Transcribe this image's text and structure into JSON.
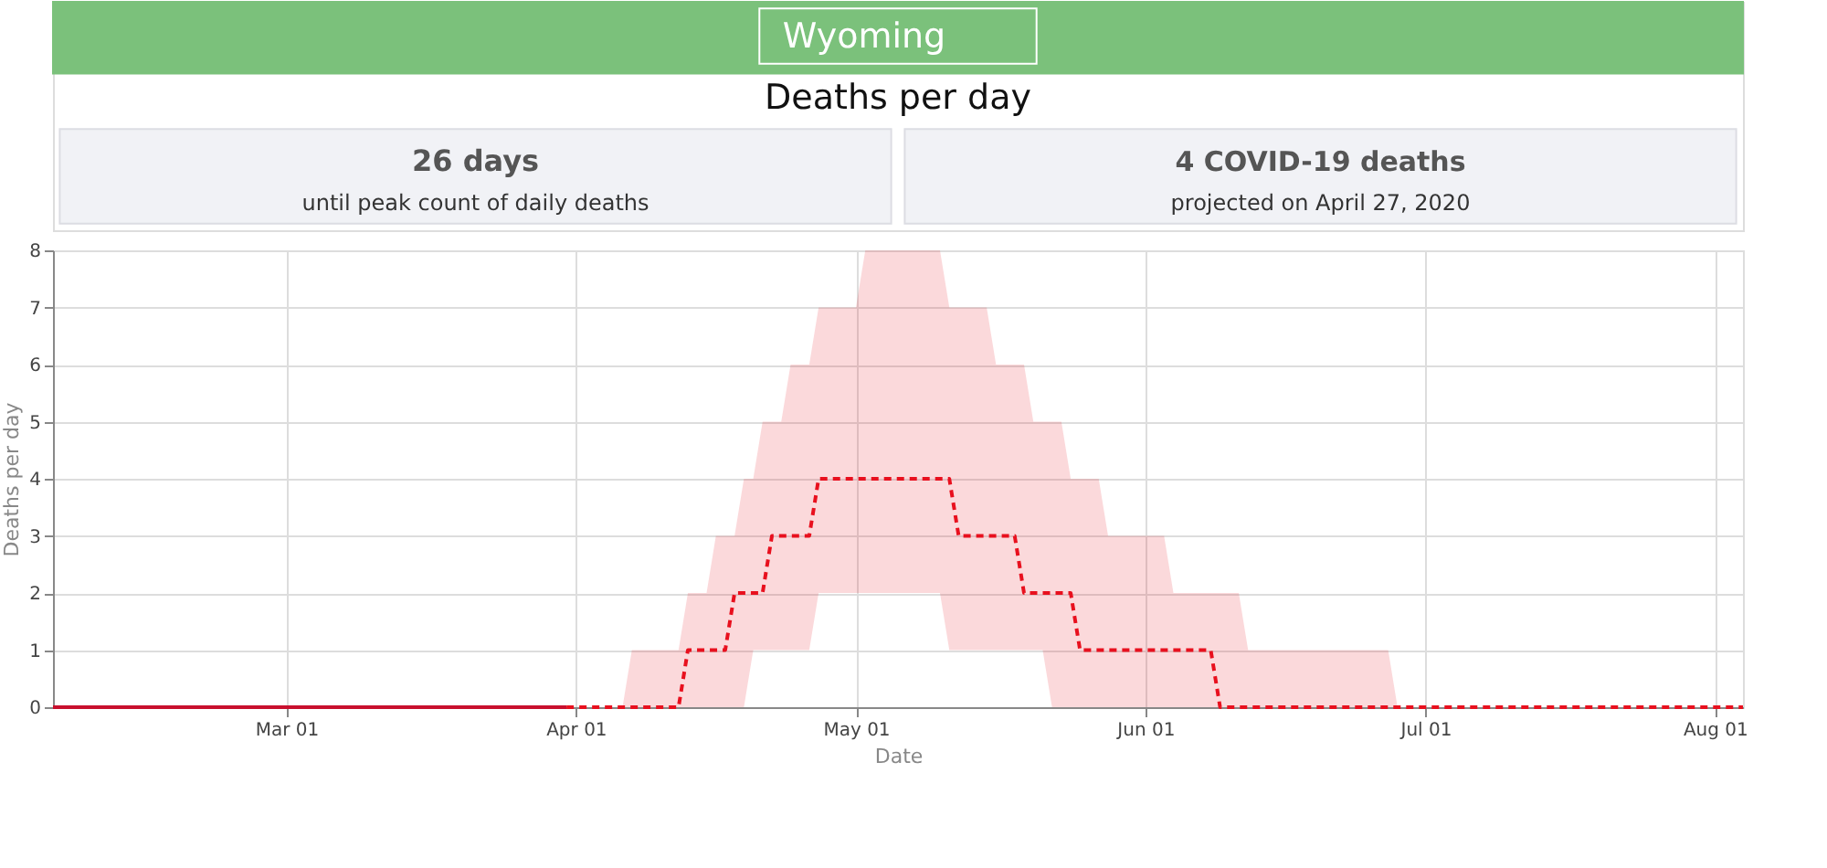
{
  "chart_data": {
    "type": "line",
    "title": "Deaths per day",
    "xlabel": "Date",
    "ylabel": "Deaths per day",
    "annotations": [
      "Wyoming",
      "26 days",
      "until peak count of daily deaths",
      "4 COVID-19 deaths",
      "projected on April 27, 2020"
    ],
    "xlim": [
      "2020-02-05",
      "2020-08-04"
    ],
    "xticks": [
      {
        "value": "2020-03-01",
        "label": "Mar 01"
      },
      {
        "value": "2020-04-01",
        "label": "Apr 01"
      },
      {
        "value": "2020-05-01",
        "label": "May 01"
      },
      {
        "value": "2020-06-01",
        "label": "Jun 01"
      },
      {
        "value": "2020-07-01",
        "label": "Jul 01"
      },
      {
        "value": "2020-08-01",
        "label": "Aug 01"
      }
    ],
    "ylim": [
      0,
      8
    ],
    "yticks": [
      0,
      1,
      2,
      3,
      4,
      5,
      6,
      7,
      8
    ],
    "grid": true,
    "series": [
      {
        "color": "#c8102e",
        "line_style": "solid",
        "x": [
          "2020-02-05",
          "2020-03-31"
        ],
        "values": [
          0,
          0
        ]
      },
      {
        "color": "#e8101e",
        "line_style": "dashed",
        "x": [
          "2020-03-31",
          "2020-04-06",
          "2020-04-07",
          "2020-04-12",
          "2020-04-13",
          "2020-04-15",
          "2020-04-16",
          "2020-04-17",
          "2020-04-18",
          "2020-04-19",
          "2020-04-20",
          "2020-04-21",
          "2020-04-22",
          "2020-04-23",
          "2020-04-24",
          "2020-04-26",
          "2020-04-27",
          "2020-05-01",
          "2020-05-02",
          "2020-05-10",
          "2020-05-11",
          "2020-05-12",
          "2020-05-15",
          "2020-05-16",
          "2020-05-18",
          "2020-05-19",
          "2020-05-20",
          "2020-05-21",
          "2020-05-22",
          "2020-05-23",
          "2020-05-24",
          "2020-05-25",
          "2020-05-27",
          "2020-05-28",
          "2020-06-03",
          "2020-06-04",
          "2020-06-08",
          "2020-06-09",
          "2020-06-11",
          "2020-06-12",
          "2020-06-27",
          "2020-06-28",
          "2020-08-04"
        ],
        "values": [
          0,
          0,
          0,
          0,
          1,
          1,
          1,
          1,
          2,
          2,
          2,
          2,
          3,
          3,
          3,
          3,
          4,
          4,
          4,
          4,
          4,
          3,
          3,
          3,
          3,
          2,
          2,
          2,
          2,
          2,
          2,
          1,
          1,
          1,
          1,
          1,
          1,
          0,
          0,
          0,
          0,
          0,
          0
        ],
        "lower": [
          0,
          0,
          0,
          0,
          0,
          0,
          0,
          0,
          0,
          0,
          1,
          1,
          1,
          1,
          1,
          1,
          2,
          2,
          2,
          2,
          1,
          1,
          1,
          1,
          1,
          1,
          1,
          1,
          0,
          0,
          0,
          0,
          0,
          0,
          0,
          0,
          0,
          0,
          0,
          0,
          0,
          0,
          0
        ],
        "upper": [
          0,
          0,
          1,
          1,
          2,
          2,
          3,
          3,
          3,
          4,
          4,
          5,
          5,
          5,
          6,
          6,
          7,
          7,
          8,
          8,
          7,
          7,
          7,
          6,
          6,
          6,
          5,
          5,
          5,
          5,
          4,
          4,
          4,
          3,
          3,
          2,
          2,
          2,
          2,
          1,
          1,
          0,
          0
        ]
      }
    ]
  }
}
